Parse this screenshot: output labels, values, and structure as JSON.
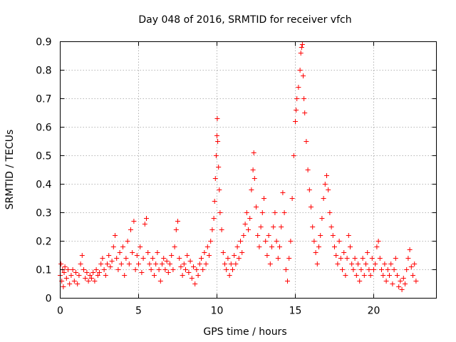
{
  "chart_data": {
    "type": "scatter",
    "title": "Day 048 of 2016, SRMTID for receiver vfch",
    "xlabel": "GPS time / hours",
    "ylabel": "SRMTID / TECUs",
    "xlim": [
      0,
      24
    ],
    "ylim": [
      0,
      0.9
    ],
    "x_ticks": [
      0,
      5,
      10,
      15,
      20
    ],
    "x_tick_labels": [
      "0",
      "5",
      "10",
      "15",
      "20"
    ],
    "y_ticks": [
      0,
      0.1,
      0.2,
      0.3,
      0.4,
      0.5,
      0.6,
      0.7,
      0.8,
      0.9
    ],
    "y_tick_labels": [
      "0",
      "0.1",
      "0.2",
      "0.3",
      "0.4",
      "0.5",
      "0.6",
      "0.7",
      "0.8",
      "0.9"
    ],
    "grid": true,
    "marker": "+",
    "color": "#ff0000",
    "series": [
      {
        "name": "vfch",
        "points": [
          [
            0.0,
            0.08
          ],
          [
            0.05,
            0.12
          ],
          [
            0.1,
            0.06
          ],
          [
            0.15,
            0.1
          ],
          [
            0.2,
            0.04
          ],
          [
            0.25,
            0.09
          ],
          [
            0.3,
            0.11
          ],
          [
            0.4,
            0.07
          ],
          [
            0.5,
            0.1
          ],
          [
            0.6,
            0.05
          ],
          [
            0.7,
            0.08
          ],
          [
            0.8,
            0.1
          ],
          [
            0.9,
            0.06
          ],
          [
            1.0,
            0.09
          ],
          [
            1.1,
            0.05
          ],
          [
            1.2,
            0.08
          ],
          [
            1.3,
            0.12
          ],
          [
            1.4,
            0.15
          ],
          [
            1.5,
            0.1
          ],
          [
            1.6,
            0.07
          ],
          [
            1.7,
            0.09
          ],
          [
            1.8,
            0.06
          ],
          [
            1.9,
            0.08
          ],
          [
            2.0,
            0.07
          ],
          [
            2.1,
            0.09
          ],
          [
            2.2,
            0.06
          ],
          [
            2.3,
            0.1
          ],
          [
            2.4,
            0.08
          ],
          [
            2.5,
            0.09
          ],
          [
            2.6,
            0.12
          ],
          [
            2.7,
            0.14
          ],
          [
            2.8,
            0.1
          ],
          [
            2.9,
            0.08
          ],
          [
            3.0,
            0.12
          ],
          [
            3.1,
            0.15
          ],
          [
            3.2,
            0.11
          ],
          [
            3.3,
            0.13
          ],
          [
            3.4,
            0.18
          ],
          [
            3.5,
            0.22
          ],
          [
            3.6,
            0.14
          ],
          [
            3.7,
            0.1
          ],
          [
            3.8,
            0.16
          ],
          [
            3.9,
            0.12
          ],
          [
            4.0,
            0.18
          ],
          [
            4.1,
            0.08
          ],
          [
            4.2,
            0.14
          ],
          [
            4.3,
            0.2
          ],
          [
            4.4,
            0.12
          ],
          [
            4.5,
            0.24
          ],
          [
            4.6,
            0.16
          ],
          [
            4.7,
            0.27
          ],
          [
            4.8,
            0.1
          ],
          [
            4.9,
            0.15
          ],
          [
            5.0,
            0.12
          ],
          [
            5.1,
            0.18
          ],
          [
            5.2,
            0.09
          ],
          [
            5.3,
            0.14
          ],
          [
            5.4,
            0.26
          ],
          [
            5.5,
            0.28
          ],
          [
            5.6,
            0.16
          ],
          [
            5.7,
            0.12
          ],
          [
            5.8,
            0.1
          ],
          [
            5.9,
            0.14
          ],
          [
            6.0,
            0.08
          ],
          [
            6.1,
            0.12
          ],
          [
            6.2,
            0.16
          ],
          [
            6.3,
            0.1
          ],
          [
            6.4,
            0.06
          ],
          [
            6.5,
            0.12
          ],
          [
            6.6,
            0.14
          ],
          [
            6.7,
            0.1
          ],
          [
            6.8,
            0.13
          ],
          [
            6.9,
            0.09
          ],
          [
            7.0,
            0.12
          ],
          [
            7.1,
            0.15
          ],
          [
            7.2,
            0.1
          ],
          [
            7.3,
            0.18
          ],
          [
            7.4,
            0.24
          ],
          [
            7.5,
            0.27
          ],
          [
            7.6,
            0.14
          ],
          [
            7.7,
            0.11
          ],
          [
            7.8,
            0.08
          ],
          [
            7.9,
            0.12
          ],
          [
            8.0,
            0.1
          ],
          [
            8.1,
            0.15
          ],
          [
            8.2,
            0.09
          ],
          [
            8.3,
            0.13
          ],
          [
            8.4,
            0.07
          ],
          [
            8.5,
            0.11
          ],
          [
            8.6,
            0.05
          ],
          [
            8.7,
            0.1
          ],
          [
            8.8,
            0.08
          ],
          [
            8.9,
            0.12
          ],
          [
            9.0,
            0.14
          ],
          [
            9.1,
            0.1
          ],
          [
            9.2,
            0.16
          ],
          [
            9.3,
            0.12
          ],
          [
            9.4,
            0.18
          ],
          [
            9.5,
            0.15
          ],
          [
            9.6,
            0.2
          ],
          [
            9.7,
            0.24
          ],
          [
            9.8,
            0.28
          ],
          [
            9.85,
            0.34
          ],
          [
            9.9,
            0.42
          ],
          [
            9.95,
            0.5
          ],
          [
            10.0,
            0.57
          ],
          [
            10.02,
            0.63
          ],
          [
            10.05,
            0.55
          ],
          [
            10.1,
            0.46
          ],
          [
            10.15,
            0.38
          ],
          [
            10.2,
            0.3
          ],
          [
            10.3,
            0.24
          ],
          [
            10.4,
            0.16
          ],
          [
            10.5,
            0.12
          ],
          [
            10.6,
            0.1
          ],
          [
            10.7,
            0.14
          ],
          [
            10.8,
            0.08
          ],
          [
            10.9,
            0.12
          ],
          [
            11.0,
            0.1
          ],
          [
            11.1,
            0.15
          ],
          [
            11.2,
            0.12
          ],
          [
            11.3,
            0.18
          ],
          [
            11.4,
            0.14
          ],
          [
            11.5,
            0.2
          ],
          [
            11.6,
            0.16
          ],
          [
            11.7,
            0.22
          ],
          [
            11.8,
            0.26
          ],
          [
            11.9,
            0.3
          ],
          [
            12.0,
            0.24
          ],
          [
            12.1,
            0.28
          ],
          [
            12.2,
            0.38
          ],
          [
            12.3,
            0.45
          ],
          [
            12.35,
            0.51
          ],
          [
            12.4,
            0.42
          ],
          [
            12.5,
            0.32
          ],
          [
            12.6,
            0.22
          ],
          [
            12.7,
            0.18
          ],
          [
            12.8,
            0.25
          ],
          [
            12.9,
            0.3
          ],
          [
            13.0,
            0.35
          ],
          [
            13.1,
            0.2
          ],
          [
            13.2,
            0.15
          ],
          [
            13.3,
            0.22
          ],
          [
            13.4,
            0.12
          ],
          [
            13.5,
            0.18
          ],
          [
            13.6,
            0.25
          ],
          [
            13.7,
            0.3
          ],
          [
            13.8,
            0.2
          ],
          [
            13.9,
            0.14
          ],
          [
            14.0,
            0.18
          ],
          [
            14.1,
            0.25
          ],
          [
            14.2,
            0.37
          ],
          [
            14.3,
            0.3
          ],
          [
            14.4,
            0.1
          ],
          [
            14.5,
            0.06
          ],
          [
            14.6,
            0.14
          ],
          [
            14.7,
            0.2
          ],
          [
            14.8,
            0.35
          ],
          [
            14.9,
            0.5
          ],
          [
            15.0,
            0.62
          ],
          [
            15.05,
            0.66
          ],
          [
            15.1,
            0.7
          ],
          [
            15.2,
            0.74
          ],
          [
            15.3,
            0.8
          ],
          [
            15.35,
            0.86
          ],
          [
            15.4,
            0.88
          ],
          [
            15.45,
            0.89
          ],
          [
            15.5,
            0.78
          ],
          [
            15.55,
            0.7
          ],
          [
            15.6,
            0.65
          ],
          [
            15.7,
            0.55
          ],
          [
            15.8,
            0.45
          ],
          [
            15.9,
            0.38
          ],
          [
            16.0,
            0.32
          ],
          [
            16.1,
            0.25
          ],
          [
            16.2,
            0.2
          ],
          [
            16.3,
            0.16
          ],
          [
            16.4,
            0.12
          ],
          [
            16.5,
            0.18
          ],
          [
            16.6,
            0.22
          ],
          [
            16.7,
            0.28
          ],
          [
            16.8,
            0.35
          ],
          [
            16.9,
            0.4
          ],
          [
            17.0,
            0.43
          ],
          [
            17.1,
            0.38
          ],
          [
            17.2,
            0.3
          ],
          [
            17.3,
            0.25
          ],
          [
            17.4,
            0.22
          ],
          [
            17.5,
            0.18
          ],
          [
            17.6,
            0.15
          ],
          [
            17.7,
            0.12
          ],
          [
            17.8,
            0.2
          ],
          [
            17.9,
            0.14
          ],
          [
            18.0,
            0.1
          ],
          [
            18.1,
            0.16
          ],
          [
            18.2,
            0.08
          ],
          [
            18.3,
            0.14
          ],
          [
            18.4,
            0.22
          ],
          [
            18.5,
            0.18
          ],
          [
            18.6,
            0.12
          ],
          [
            18.7,
            0.1
          ],
          [
            18.8,
            0.14
          ],
          [
            18.9,
            0.08
          ],
          [
            19.0,
            0.12
          ],
          [
            19.1,
            0.06
          ],
          [
            19.2,
            0.1
          ],
          [
            19.3,
            0.14
          ],
          [
            19.4,
            0.08
          ],
          [
            19.5,
            0.12
          ],
          [
            19.6,
            0.16
          ],
          [
            19.7,
            0.1
          ],
          [
            19.8,
            0.08
          ],
          [
            19.9,
            0.14
          ],
          [
            20.0,
            0.1
          ],
          [
            20.1,
            0.12
          ],
          [
            20.2,
            0.18
          ],
          [
            20.3,
            0.2
          ],
          [
            20.4,
            0.14
          ],
          [
            20.5,
            0.1
          ],
          [
            20.6,
            0.08
          ],
          [
            20.7,
            0.12
          ],
          [
            20.8,
            0.06
          ],
          [
            20.9,
            0.1
          ],
          [
            21.0,
            0.08
          ],
          [
            21.1,
            0.12
          ],
          [
            21.2,
            0.05
          ],
          [
            21.3,
            0.1
          ],
          [
            21.4,
            0.14
          ],
          [
            21.5,
            0.08
          ],
          [
            21.6,
            0.04
          ],
          [
            21.7,
            0.06
          ],
          [
            21.8,
            0.03
          ],
          [
            21.9,
            0.07
          ],
          [
            22.0,
            0.05
          ],
          [
            22.1,
            0.1
          ],
          [
            22.2,
            0.14
          ],
          [
            22.3,
            0.17
          ],
          [
            22.4,
            0.11
          ],
          [
            22.5,
            0.08
          ],
          [
            22.6,
            0.12
          ],
          [
            22.7,
            0.06
          ]
        ]
      }
    ]
  }
}
